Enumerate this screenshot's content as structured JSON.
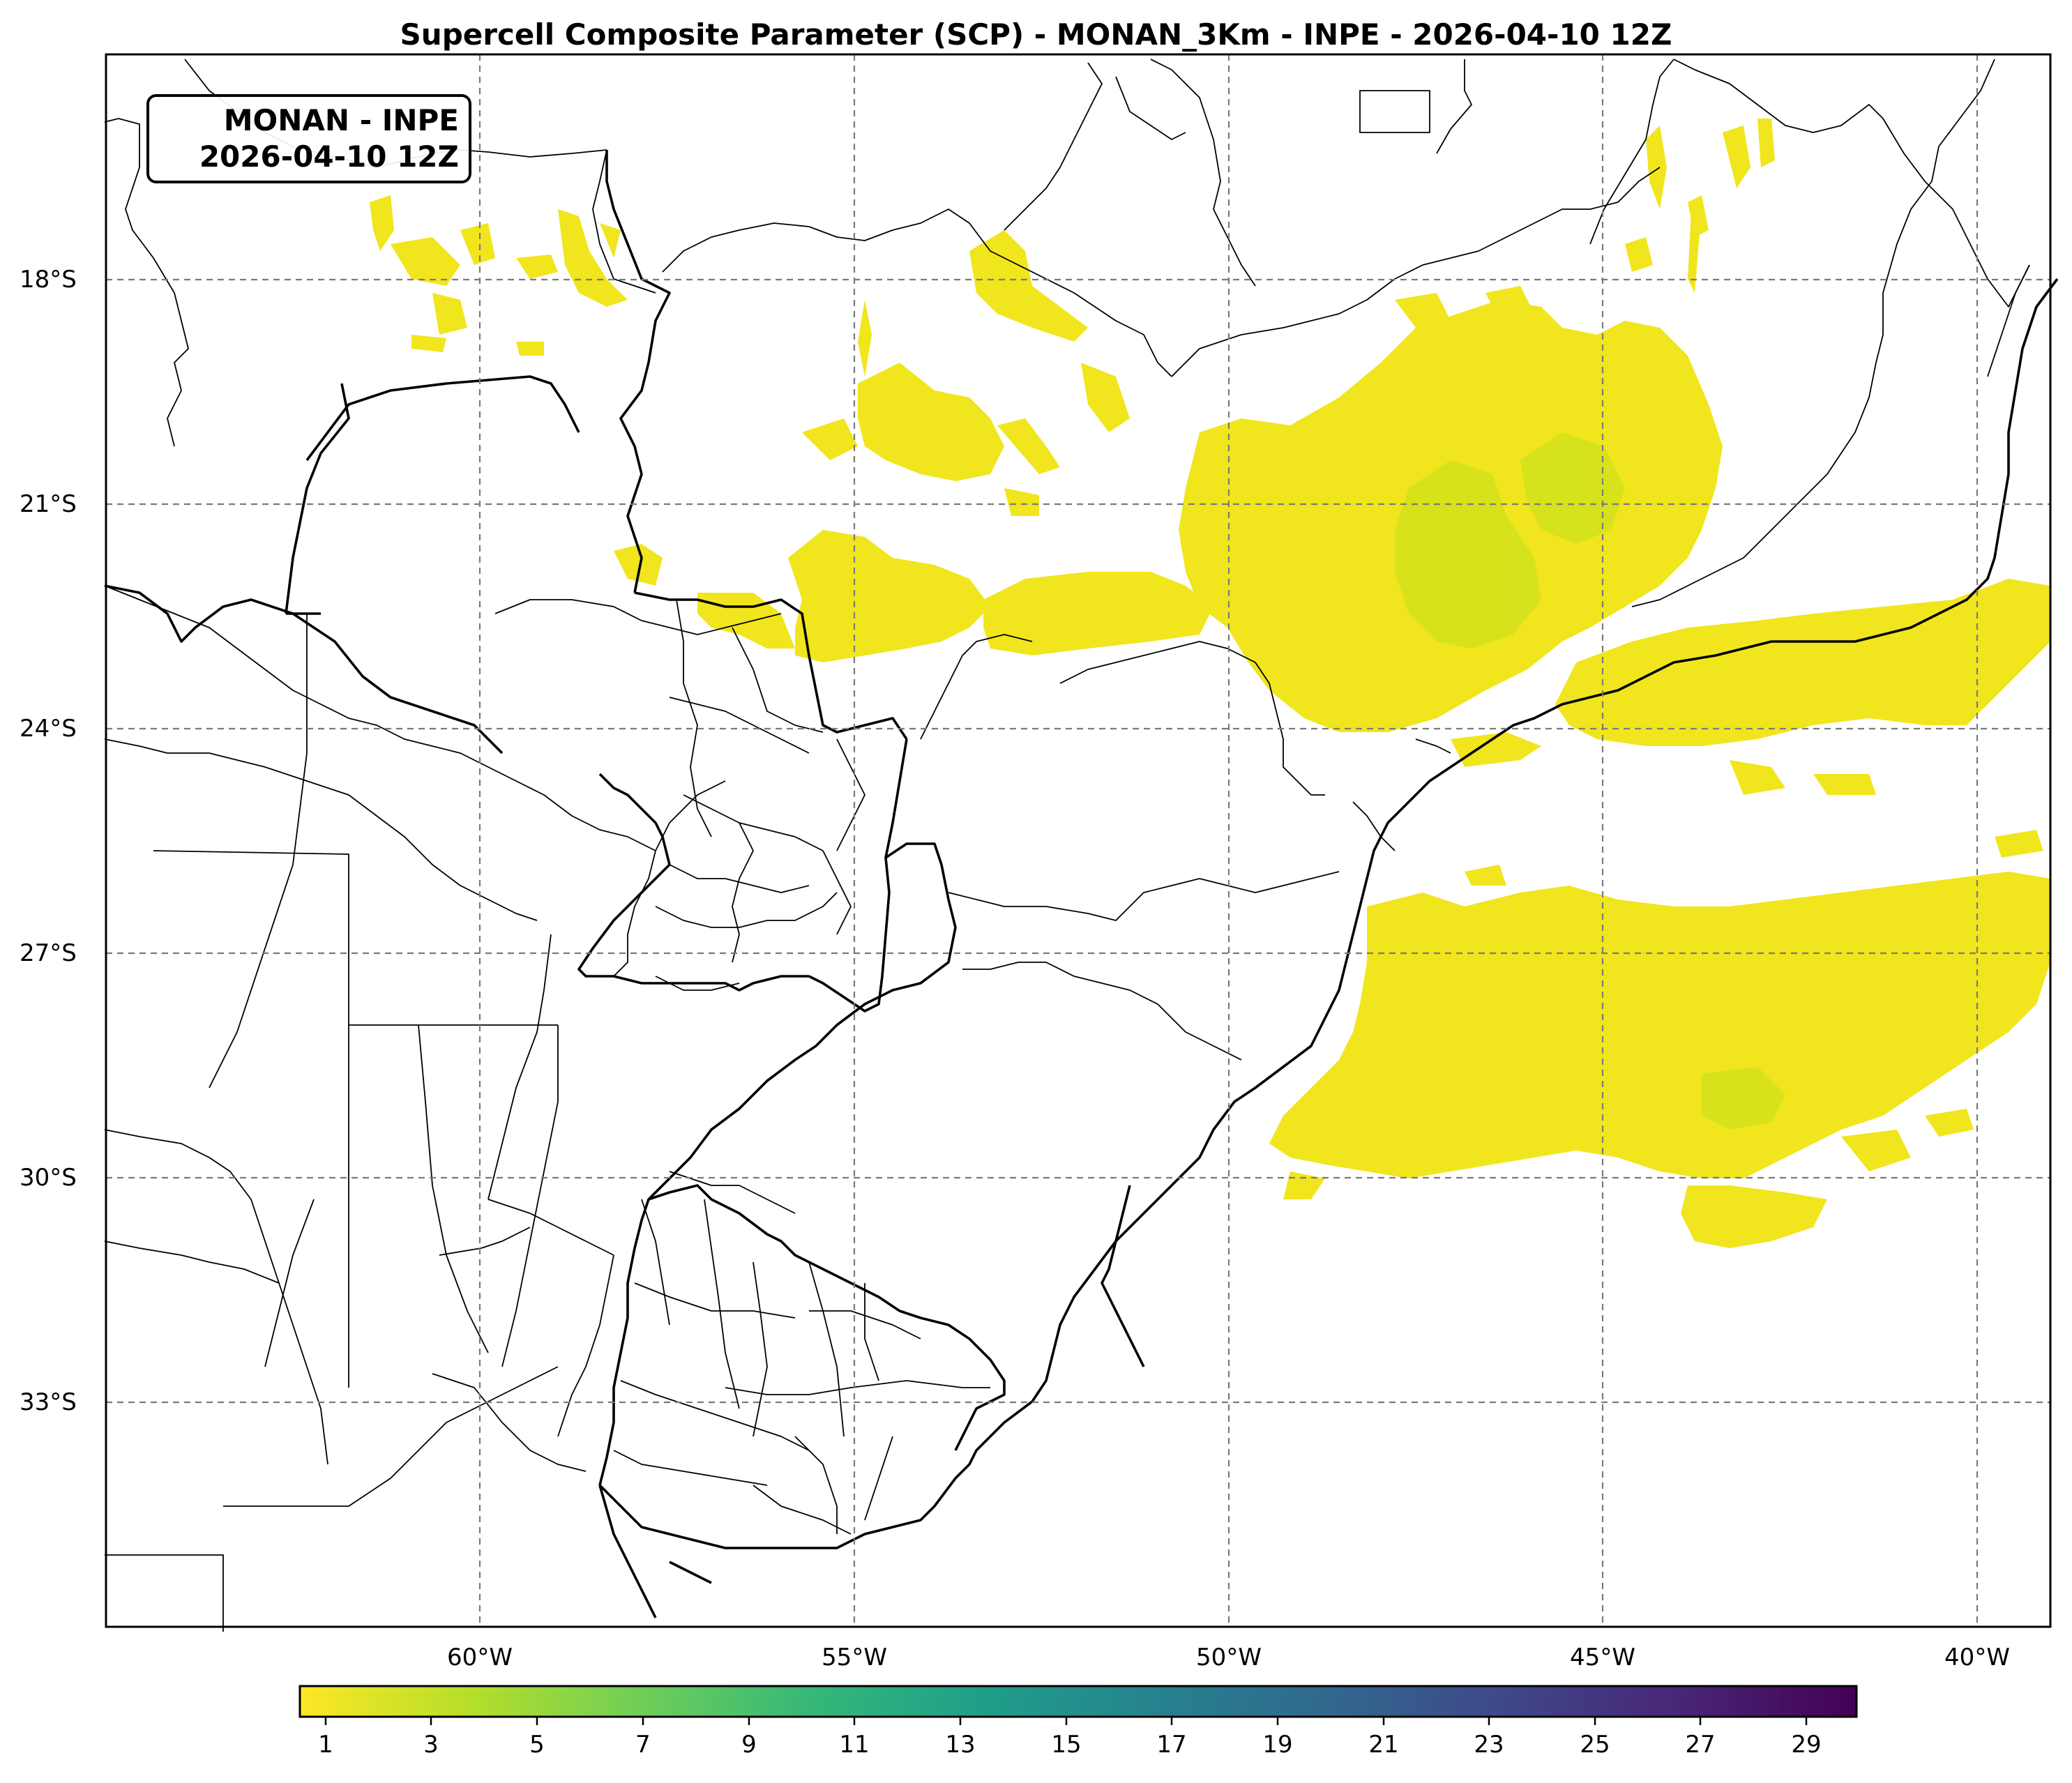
{
  "title": "Supercell Composite Parameter (SCP) - MONAN_3Km - INPE - 2026-04-10 12Z",
  "label_box": {
    "line1": "MONAN - INPE",
    "line2": "2026-04-10 12Z"
  },
  "lat_ticks": [
    "18°S",
    "21°S",
    "24°S",
    "27°S",
    "30°S",
    "33°S"
  ],
  "lon_ticks": [
    "60°W",
    "55°W",
    "50°W",
    "45°W",
    "40°W"
  ],
  "colorbar": {
    "ticks": [
      "1",
      "3",
      "5",
      "7",
      "9",
      "11",
      "13",
      "15",
      "17",
      "19",
      "21",
      "23",
      "25",
      "27",
      "29"
    ],
    "colors": [
      "#fde725",
      "#b5de2b",
      "#6ece58",
      "#35b779",
      "#1f9e89",
      "#26828e",
      "#31688e",
      "#3e4989",
      "#482878",
      "#440154"
    ]
  },
  "colors": {
    "field_low": "#f1e51d",
    "field_mid": "#d2e21b",
    "grid": "#7a7a7a"
  }
}
